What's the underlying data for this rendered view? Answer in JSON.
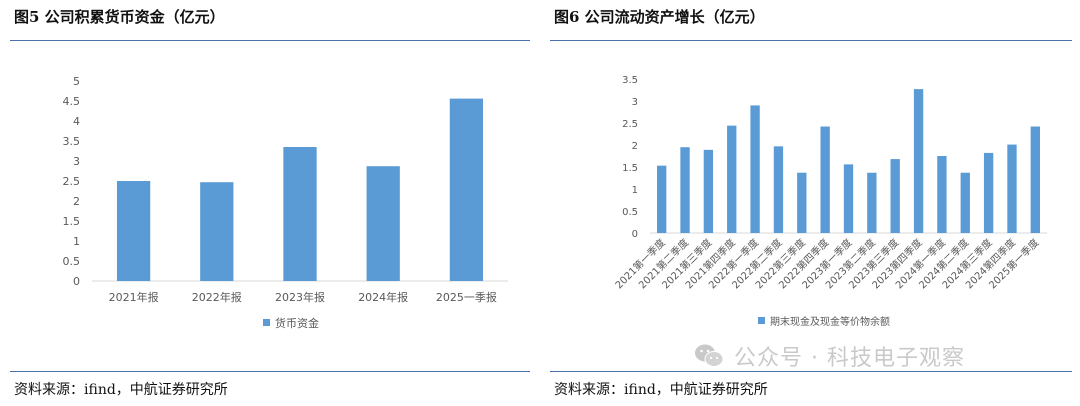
{
  "figures": [
    {
      "title": "图5 公司积累货币资金（亿元）",
      "source": "资料来源：ifind，中航证券研究所"
    },
    {
      "title": "图6 公司流动资产增长（亿元）",
      "source": "资料来源：ifind，中航证券研究所"
    }
  ],
  "watermark": {
    "text": "公众号 · 科技电子观察",
    "icon": "wechat-icon"
  },
  "colors": {
    "bar": "#5b9bd5",
    "rule": "#4a72a8",
    "grid": "#d9d9d9",
    "text": "#595959"
  },
  "chart_data": [
    {
      "type": "bar",
      "categories": [
        "2021年报",
        "2022年报",
        "2023年报",
        "2024年报",
        "2025一季报"
      ],
      "series": [
        {
          "name": "货币资金",
          "values": [
            2.5,
            2.47,
            3.35,
            2.87,
            4.56
          ]
        }
      ],
      "title": "",
      "xlabel": "",
      "ylabel": "",
      "ylim": [
        0,
        5
      ],
      "yticks": [
        "0",
        "0.5",
        "1",
        "1.5",
        "2",
        "2.5",
        "3",
        "3.5",
        "4",
        "4.5",
        "5"
      ],
      "grid": false,
      "legend": "bottom"
    },
    {
      "type": "bar",
      "categories": [
        "2021第一季度",
        "2021第二季度",
        "2021第三季度",
        "2021第四季度",
        "2022第一季度",
        "2022第二季度",
        "2022第三季度",
        "2022第四季度",
        "2023第一季度",
        "2023第二季度",
        "2023第三季度",
        "2023第四季度",
        "2024第一季度",
        "2024第二季度",
        "2024第三季度",
        "2024第四季度",
        "2025第一季度"
      ],
      "series": [
        {
          "name": "期末现金及现金等价物余额",
          "values": [
            1.53,
            1.95,
            1.89,
            2.44,
            2.9,
            1.97,
            1.37,
            2.42,
            1.56,
            1.37,
            1.68,
            3.27,
            1.75,
            1.37,
            1.82,
            2.01,
            2.42
          ]
        }
      ],
      "title": "",
      "xlabel": "",
      "ylabel": "",
      "ylim": [
        0,
        3.5
      ],
      "yticks": [
        "0",
        "0.5",
        "1",
        "1.5",
        "2",
        "2.5",
        "3",
        "3.5"
      ],
      "grid": false,
      "legend": "bottom"
    }
  ]
}
